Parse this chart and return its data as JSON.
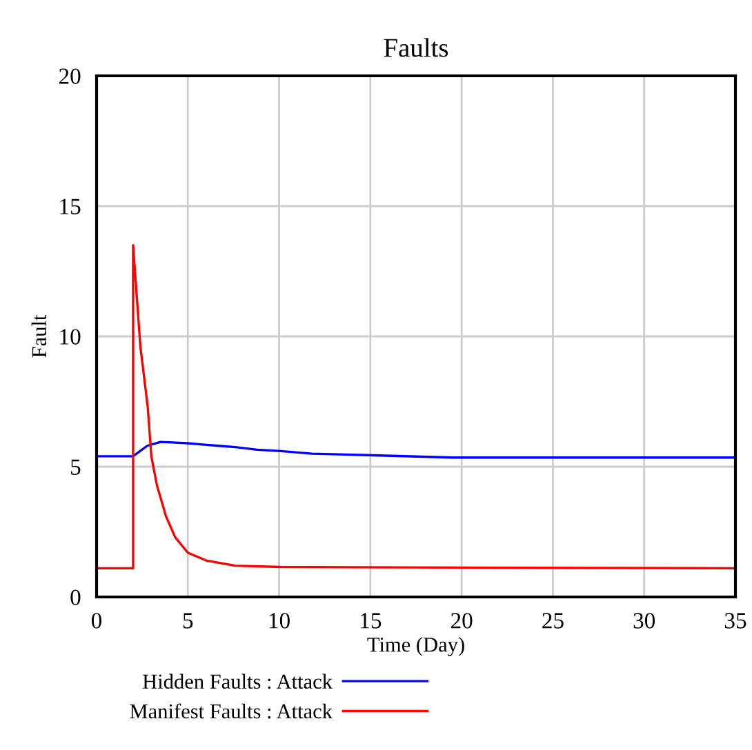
{
  "chart_data": {
    "type": "line",
    "title": "Faults",
    "xlabel": "Time (Day)",
    "ylabel": "Fault",
    "xlim": [
      0,
      35
    ],
    "xticks": [
      0,
      5,
      10,
      15,
      20,
      25,
      30,
      35
    ],
    "ylim": [
      0,
      20
    ],
    "yticks": [
      0,
      5,
      10,
      15,
      20
    ],
    "grid": true,
    "legend": "bottom",
    "marker": "none",
    "line_style": "solid",
    "series": [
      {
        "name": "Hidden Faults : Attack",
        "color": "#0000ff",
        "x": [
          0,
          2,
          2.77,
          3.5,
          5.0,
          5.8,
          6.7,
          7.6,
          8.8,
          10.1,
          11.8,
          14.5,
          19.5,
          35
        ],
        "values": [
          5.4,
          5.4,
          5.8,
          5.95,
          5.9,
          5.85,
          5.8,
          5.75,
          5.65,
          5.6,
          5.5,
          5.45,
          5.35,
          5.35
        ]
      },
      {
        "name": "Manifest Faults : Attack",
        "color": "#ff0000",
        "x": [
          0,
          2,
          2,
          2.4,
          2.8,
          3.0,
          3.3,
          3.8,
          4.3,
          5.0,
          6.0,
          6.8,
          7.6,
          10.1,
          35
        ],
        "values": [
          1.1,
          1.1,
          13.5,
          9.6,
          7.3,
          5.4,
          4.3,
          3.1,
          2.3,
          1.7,
          1.4,
          1.3,
          1.2,
          1.15,
          1.1
        ]
      }
    ]
  }
}
